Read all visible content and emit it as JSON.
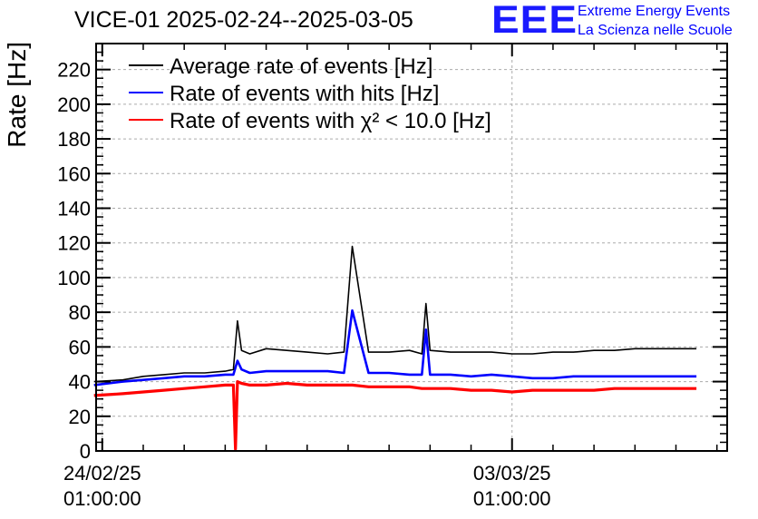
{
  "chart_data": {
    "type": "line",
    "title": "VICE-01 2025-02-24--2025-03-05",
    "ylabel": "Rate [Hz]",
    "xlabel": "",
    "ylim": [
      0,
      235
    ],
    "xlim_days": [
      -0.15,
      15.25
    ],
    "yticks": [
      0,
      20,
      40,
      60,
      80,
      100,
      120,
      140,
      160,
      180,
      200,
      220
    ],
    "xticks": [
      {
        "line1": "24/02/25",
        "line2": "01:00:00",
        "day": 0
      },
      {
        "line1": "03/03/25",
        "line2": "01:00:00",
        "day": 10
      }
    ],
    "grid": true,
    "legend_position": "top-left",
    "series": [
      {
        "name": "Average rate of events [Hz]",
        "color": "#000000",
        "x": [
          -0.2,
          0.5,
          1.0,
          1.5,
          2.0,
          2.5,
          3.0,
          3.2,
          3.3,
          3.4,
          3.6,
          4.0,
          4.5,
          5.0,
          5.5,
          5.9,
          6.1,
          6.5,
          6.9,
          7.0,
          7.5,
          7.8,
          7.9,
          8.0,
          8.5,
          9.0,
          9.5,
          10.0,
          10.5,
          11.0,
          11.5,
          12.0,
          12.5,
          13.0,
          13.5,
          14.0,
          14.5
        ],
        "y": [
          40,
          41,
          43,
          44,
          45,
          45,
          46,
          47,
          75,
          58,
          56,
          59,
          58,
          57,
          56,
          57,
          118,
          57,
          57,
          57,
          58,
          56,
          85,
          58,
          57,
          57,
          57,
          56,
          56,
          57,
          57,
          58,
          58,
          59,
          59,
          59,
          59
        ]
      },
      {
        "name": "Rate of events with hits [Hz]",
        "color": "#0000ff",
        "x": [
          -0.2,
          0.5,
          1.0,
          1.5,
          2.0,
          2.5,
          3.0,
          3.2,
          3.3,
          3.4,
          3.6,
          4.0,
          4.5,
          5.0,
          5.5,
          5.9,
          6.1,
          6.5,
          6.9,
          7.0,
          7.5,
          7.8,
          7.9,
          8.0,
          8.5,
          9.0,
          9.5,
          10.0,
          10.5,
          11.0,
          11.5,
          12.0,
          12.5,
          13.0,
          13.5,
          14.0,
          14.5
        ],
        "y": [
          38,
          40,
          41,
          42,
          43,
          43,
          44,
          44,
          52,
          47,
          45,
          46,
          46,
          46,
          46,
          45,
          81,
          45,
          45,
          45,
          44,
          44,
          70,
          44,
          44,
          43,
          44,
          43,
          42,
          42,
          43,
          43,
          43,
          43,
          43,
          43,
          43
        ]
      },
      {
        "name": "Rate of events with χ² < 10.0 [Hz]",
        "color": "#ff0000",
        "x": [
          -0.2,
          0.5,
          1.0,
          1.5,
          2.0,
          2.5,
          3.0,
          3.2,
          3.25,
          3.3,
          3.4,
          3.6,
          4.0,
          4.5,
          5.0,
          5.5,
          5.9,
          6.1,
          6.5,
          6.9,
          7.0,
          7.5,
          7.8,
          7.9,
          8.0,
          8.5,
          9.0,
          9.5,
          10.0,
          10.5,
          11.0,
          11.5,
          12.0,
          12.5,
          13.0,
          13.5,
          14.0,
          14.5
        ],
        "y": [
          32,
          33,
          34,
          35,
          36,
          37,
          38,
          38,
          1,
          40,
          39,
          38,
          38,
          39,
          38,
          38,
          38,
          38,
          37,
          37,
          37,
          37,
          36,
          36,
          36,
          36,
          35,
          35,
          34,
          35,
          35,
          35,
          35,
          36,
          36,
          36,
          36,
          36
        ]
      }
    ]
  },
  "logo": {
    "mark": "EEE",
    "line1": "Extreme Energy Events",
    "line2": "La Scienza nelle Scuole"
  }
}
